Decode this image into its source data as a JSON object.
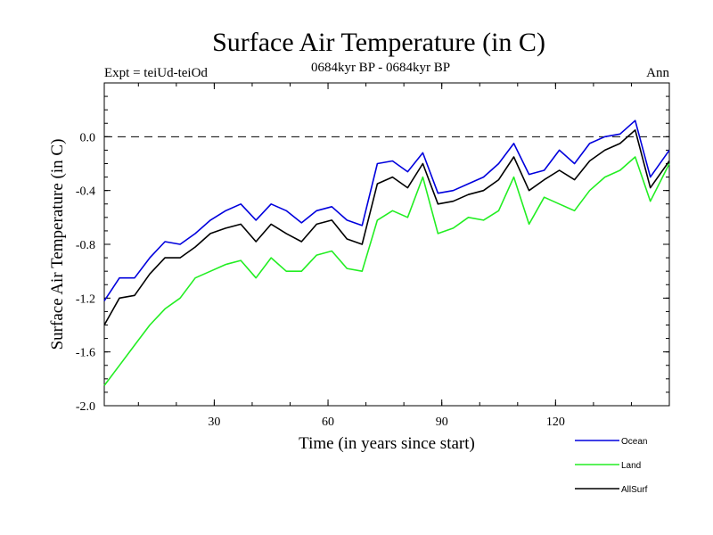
{
  "header": {
    "title": "Surface Air Temperature (in C)",
    "expt": "Expt = teiUd-teiOd",
    "period": "0684kyr BP - 0684kyr BP",
    "season": "Ann"
  },
  "chart_data": {
    "type": "line",
    "title": "Surface Air Temperature (in C)",
    "xlabel": "Time (in years since start)",
    "ylabel": "Surface Air Temperature (in C)",
    "xlim": [
      1,
      150
    ],
    "ylim": [
      -2.0,
      0.4
    ],
    "xticks": [
      30,
      60,
      90,
      120
    ],
    "xtick_labels": [
      "30",
      "60",
      "90",
      "120"
    ],
    "yticks": [
      0.0,
      -0.4,
      -0.8,
      -1.2,
      -1.6,
      -2.0
    ],
    "ytick_labels": [
      "0.0",
      "-0.4",
      "-0.8",
      "-1.2",
      "-1.6",
      "-2.0"
    ],
    "reference_line": 0.0,
    "legend_position": "bottom-right",
    "series": [
      {
        "name": "Ocean",
        "color": "#0000dd",
        "x": [
          1,
          5,
          9,
          13,
          17,
          21,
          25,
          29,
          33,
          37,
          41,
          45,
          49,
          53,
          57,
          61,
          65,
          69,
          73,
          77,
          81,
          85,
          89,
          93,
          97,
          101,
          105,
          109,
          113,
          117,
          121,
          125,
          129,
          133,
          137,
          141,
          145,
          150
        ],
        "values": [
          -1.22,
          -1.05,
          -1.05,
          -0.9,
          -0.78,
          -0.8,
          -0.72,
          -0.62,
          -0.55,
          -0.5,
          -0.62,
          -0.5,
          -0.55,
          -0.64,
          -0.55,
          -0.52,
          -0.62,
          -0.66,
          -0.2,
          -0.18,
          -0.26,
          -0.12,
          -0.42,
          -0.4,
          -0.35,
          -0.3,
          -0.2,
          -0.05,
          -0.28,
          -0.25,
          -0.1,
          -0.2,
          -0.05,
          0.0,
          0.02,
          0.12,
          -0.3,
          -0.1
        ]
      },
      {
        "name": "Land",
        "color": "#22ee22",
        "x": [
          1,
          5,
          9,
          13,
          17,
          21,
          25,
          29,
          33,
          37,
          41,
          45,
          49,
          53,
          57,
          61,
          65,
          69,
          73,
          77,
          81,
          85,
          89,
          93,
          97,
          101,
          105,
          109,
          113,
          117,
          121,
          125,
          129,
          133,
          137,
          141,
          145,
          150
        ],
        "values": [
          -1.85,
          -1.7,
          -1.55,
          -1.4,
          -1.28,
          -1.2,
          -1.05,
          -1.0,
          -0.95,
          -0.92,
          -1.05,
          -0.9,
          -1.0,
          -1.0,
          -0.88,
          -0.85,
          -0.98,
          -1.0,
          -0.62,
          -0.55,
          -0.6,
          -0.3,
          -0.72,
          -0.68,
          -0.6,
          -0.62,
          -0.55,
          -0.3,
          -0.65,
          -0.45,
          -0.5,
          -0.55,
          -0.4,
          -0.3,
          -0.25,
          -0.15,
          -0.48,
          -0.2
        ]
      },
      {
        "name": "AllSurf",
        "color": "#000000",
        "x": [
          1,
          5,
          9,
          13,
          17,
          21,
          25,
          29,
          33,
          37,
          41,
          45,
          49,
          53,
          57,
          61,
          65,
          69,
          73,
          77,
          81,
          85,
          89,
          93,
          97,
          101,
          105,
          109,
          113,
          117,
          121,
          125,
          129,
          133,
          137,
          141,
          145,
          150
        ],
        "values": [
          -1.4,
          -1.2,
          -1.18,
          -1.02,
          -0.9,
          -0.9,
          -0.82,
          -0.72,
          -0.68,
          -0.65,
          -0.78,
          -0.65,
          -0.72,
          -0.78,
          -0.65,
          -0.62,
          -0.76,
          -0.8,
          -0.35,
          -0.3,
          -0.38,
          -0.2,
          -0.5,
          -0.48,
          -0.43,
          -0.4,
          -0.32,
          -0.15,
          -0.4,
          -0.32,
          -0.25,
          -0.32,
          -0.18,
          -0.1,
          -0.05,
          0.05,
          -0.38,
          -0.18
        ]
      }
    ]
  }
}
